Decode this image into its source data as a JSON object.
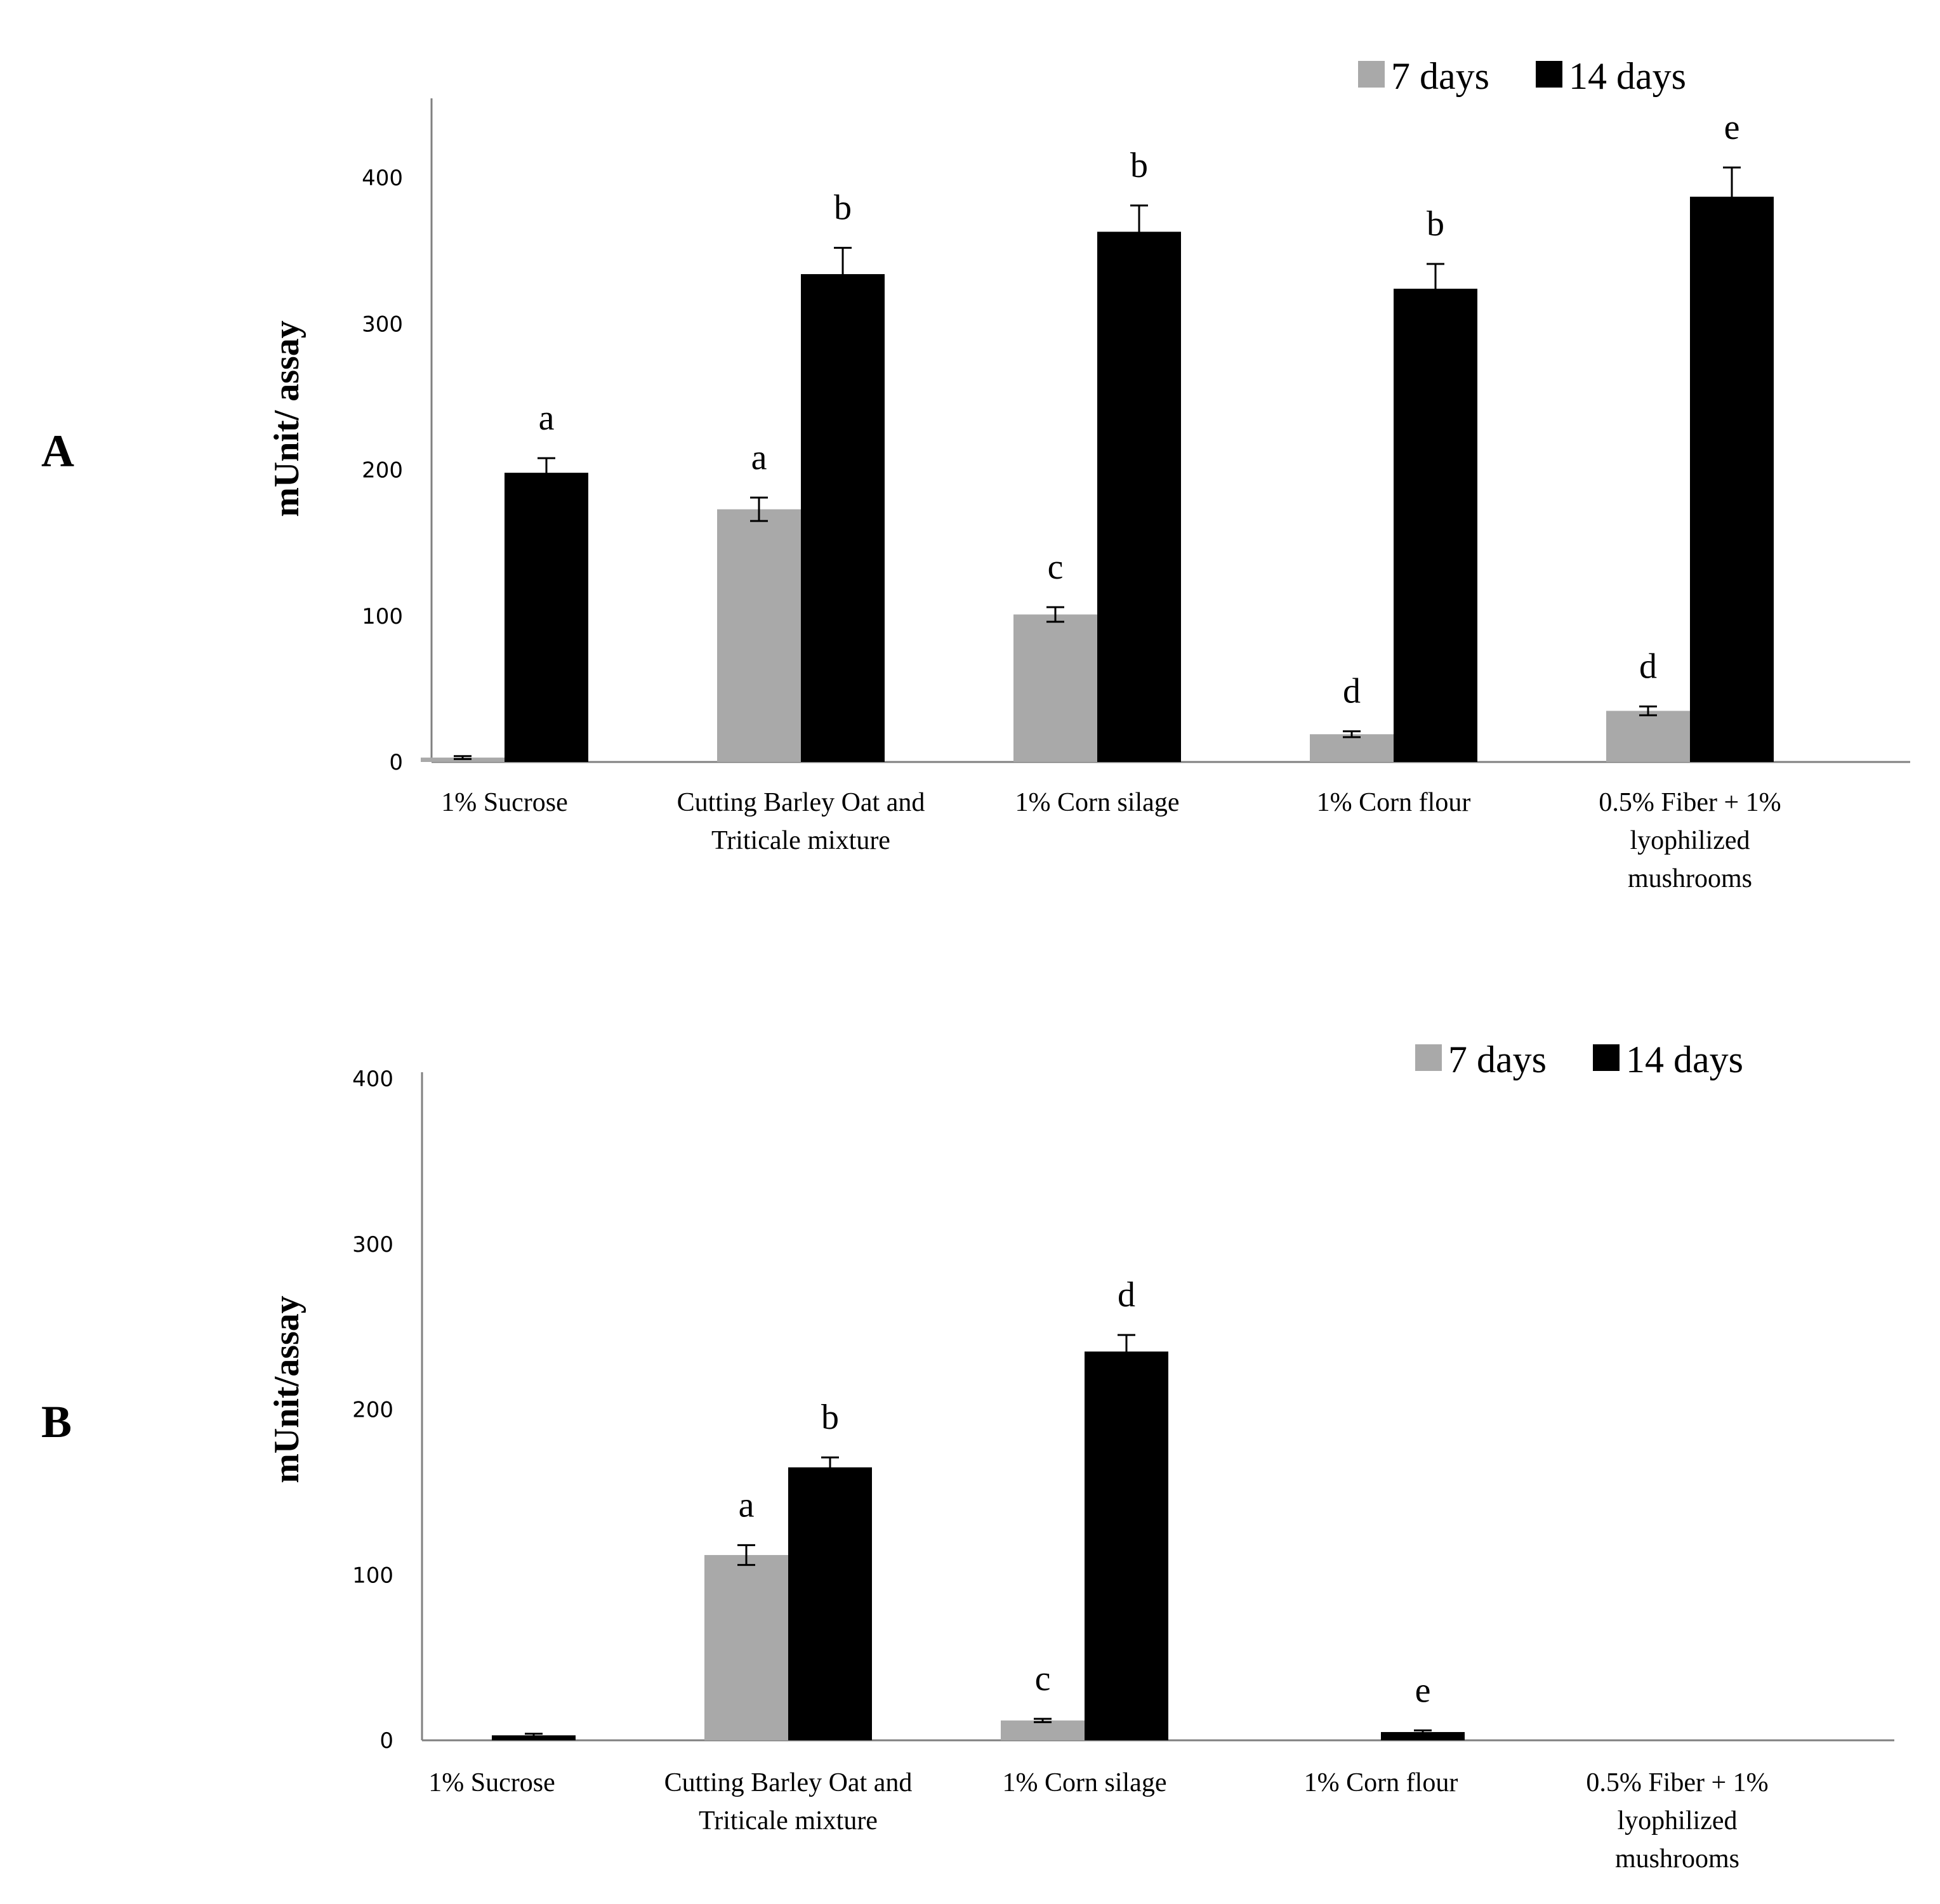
{
  "colors": {
    "seven_days": "#a9a9a9",
    "fourteen_days": "#000000",
    "axis": "#808080"
  },
  "chart_data": [
    {
      "type": "bar",
      "panel": "A",
      "ylabel": "mUnit/ assay",
      "ylim": [
        0,
        450
      ],
      "yticks": [
        0,
        100,
        200,
        300,
        400
      ],
      "legend_position": "top-right",
      "categories": [
        [
          "1% Sucrose"
        ],
        [
          "Cutting Barley Oat and",
          "Triticale mixture"
        ],
        [
          "1% Corn silage"
        ],
        [
          "1% Corn flour"
        ],
        [
          "0.5% Fiber + 1%",
          "lyophilized",
          "mushrooms"
        ]
      ],
      "series": [
        {
          "name": "7 days",
          "values": [
            3,
            173,
            101,
            19,
            35
          ],
          "errors": [
            1,
            8,
            5,
            2,
            3
          ],
          "labels": [
            "",
            "a",
            "c",
            "d",
            "d"
          ]
        },
        {
          "name": "14 days",
          "values": [
            198,
            334,
            363,
            324,
            387
          ],
          "errors": [
            10,
            18,
            18,
            17,
            20
          ],
          "labels": [
            "a",
            "b",
            "b",
            "b",
            "e"
          ]
        }
      ]
    },
    {
      "type": "bar",
      "panel": "B",
      "ylabel": "mUnit/assay",
      "ylim": [
        0,
        400
      ],
      "yticks": [
        0,
        100,
        200,
        300,
        400
      ],
      "legend_position": "top-right",
      "categories": [
        [
          "1% Sucrose"
        ],
        [
          "Cutting Barley Oat and",
          "Triticale mixture"
        ],
        [
          "1% Corn silage"
        ],
        [
          "1% Corn flour"
        ],
        [
          "0.5% Fiber + 1%",
          "lyophilized",
          "mushrooms"
        ]
      ],
      "series": [
        {
          "name": "7 days",
          "values": [
            0,
            112,
            12,
            0,
            0
          ],
          "errors": [
            0,
            6,
            1,
            0,
            0
          ],
          "labels": [
            "",
            "a",
            "c",
            "",
            ""
          ]
        },
        {
          "name": "14 days",
          "values": [
            3,
            165,
            235,
            5,
            0
          ],
          "errors": [
            1,
            6,
            10,
            1,
            0
          ],
          "labels": [
            "",
            "b",
            "d",
            "e",
            ""
          ]
        }
      ]
    }
  ]
}
